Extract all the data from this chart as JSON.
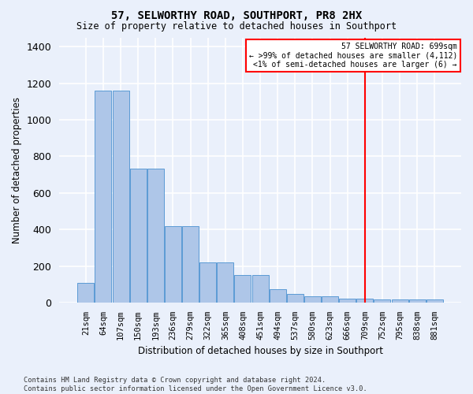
{
  "title": "57, SELWORTHY ROAD, SOUTHPORT, PR8 2HX",
  "subtitle": "Size of property relative to detached houses in Southport",
  "xlabel": "Distribution of detached houses by size in Southport",
  "ylabel": "Number of detached properties",
  "footer_line1": "Contains HM Land Registry data © Crown copyright and database right 2024.",
  "footer_line2": "Contains public sector information licensed under the Open Government Licence v3.0.",
  "bar_labels": [
    "21sqm",
    "64sqm",
    "107sqm",
    "150sqm",
    "193sqm",
    "236sqm",
    "279sqm",
    "322sqm",
    "365sqm",
    "408sqm",
    "451sqm",
    "494sqm",
    "537sqm",
    "580sqm",
    "623sqm",
    "666sqm",
    "709sqm",
    "752sqm",
    "795sqm",
    "838sqm",
    "881sqm"
  ],
  "bar_values": [
    107,
    1160,
    1160,
    733,
    733,
    418,
    418,
    218,
    218,
    152,
    152,
    72,
    48,
    33,
    33,
    20,
    20,
    15,
    15,
    15,
    15
  ],
  "bar_color": "#aec6e8",
  "bar_edge_color": "#5b9bd5",
  "ylim": [
    0,
    1450
  ],
  "yticks": [
    0,
    200,
    400,
    600,
    800,
    1000,
    1200,
    1400
  ],
  "annotation_line1": "57 SELWORTHY ROAD: 699sqm",
  "annotation_line2": "← >99% of detached houses are smaller (4,112)",
  "annotation_line3": "<1% of semi-detached houses are larger (6) →",
  "vline_bar_index": 16,
  "background_color": "#eaf0fb",
  "grid_color": "#ffffff"
}
